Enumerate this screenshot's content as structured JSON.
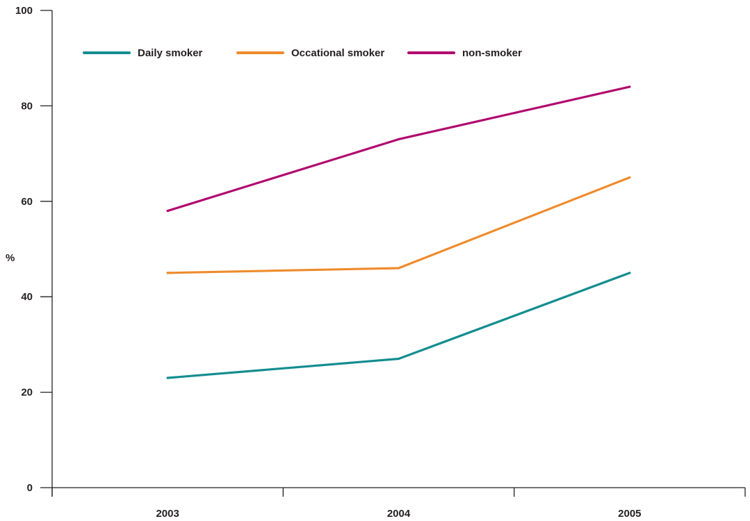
{
  "chart_data": {
    "type": "line",
    "title": "",
    "xlabel": "",
    "ylabel": "%",
    "x": [
      "2003",
      "2004",
      "2005"
    ],
    "ylim": [
      0,
      100
    ],
    "yticks": [
      0,
      20,
      40,
      60,
      80,
      100
    ],
    "grid": false,
    "legend_position": "top",
    "series": [
      {
        "name": "Daily smoker",
        "color": "#138d90",
        "values": [
          23,
          27,
          45
        ]
      },
      {
        "name": "Occational smoker",
        "color": "#ee8b2c",
        "values": [
          45,
          46,
          65
        ]
      },
      {
        "name": "non-smoker",
        "color": "#b0086e",
        "values": [
          58,
          73,
          84
        ]
      }
    ]
  }
}
